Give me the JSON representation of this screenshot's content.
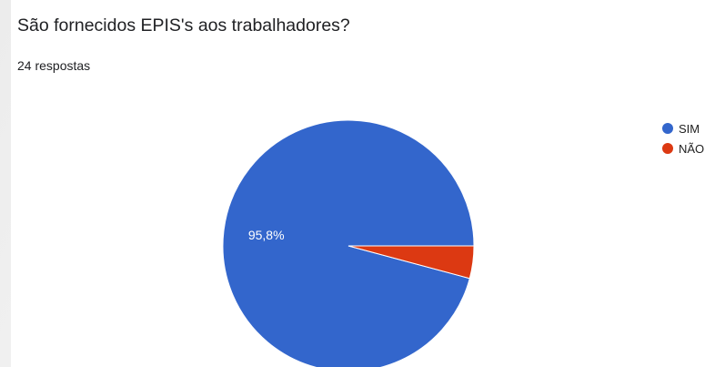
{
  "chart_data": {
    "type": "pie",
    "title": "São fornecidos EPIS's aos trabalhadores?",
    "subtitle": "24 respostas",
    "categories": [
      "SIM",
      "NÃO"
    ],
    "values": [
      23,
      1
    ],
    "data_labels": [
      "95,8%",
      ""
    ],
    "colors": [
      "#3366cc",
      "#dc3912"
    ],
    "legend_position": "right"
  }
}
